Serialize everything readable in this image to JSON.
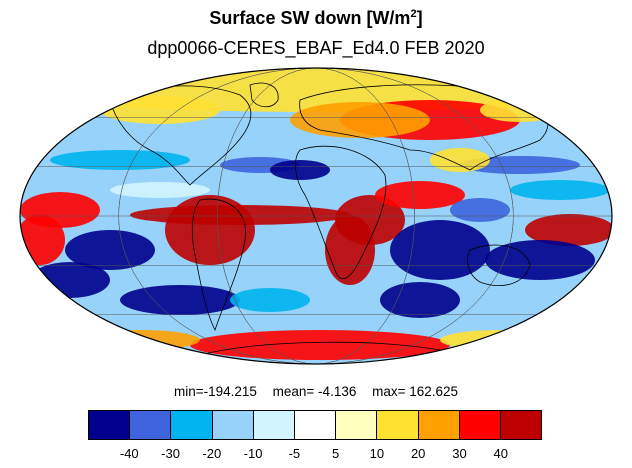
{
  "title": {
    "main": "Surface SW down [W/m",
    "sup": "2",
    "close": "]"
  },
  "subtitle": "dpp0066-CERES_EBAF_Ed4.0  FEB 2020",
  "stats": {
    "min": "min=-194.215",
    "mean": "mean=  -4.136",
    "max": "max= 162.625"
  },
  "legend": {
    "colors": [
      "#00008c",
      "#3d64dc",
      "#00b4f0",
      "#96d2fa",
      "#d2f5ff",
      "#ffffff",
      "#ffffbe",
      "#ffe132",
      "#ffa000",
      "#ff0000",
      "#be0000"
    ],
    "labels": [
      "-40",
      "-30",
      "-20",
      "-10",
      "-5",
      "5",
      "10",
      "20",
      "30",
      "40"
    ]
  },
  "map": {
    "projection": "mollweide",
    "field": "Surface SW down bias",
    "units": "W/m2",
    "graticule": true,
    "coastlines": true
  }
}
